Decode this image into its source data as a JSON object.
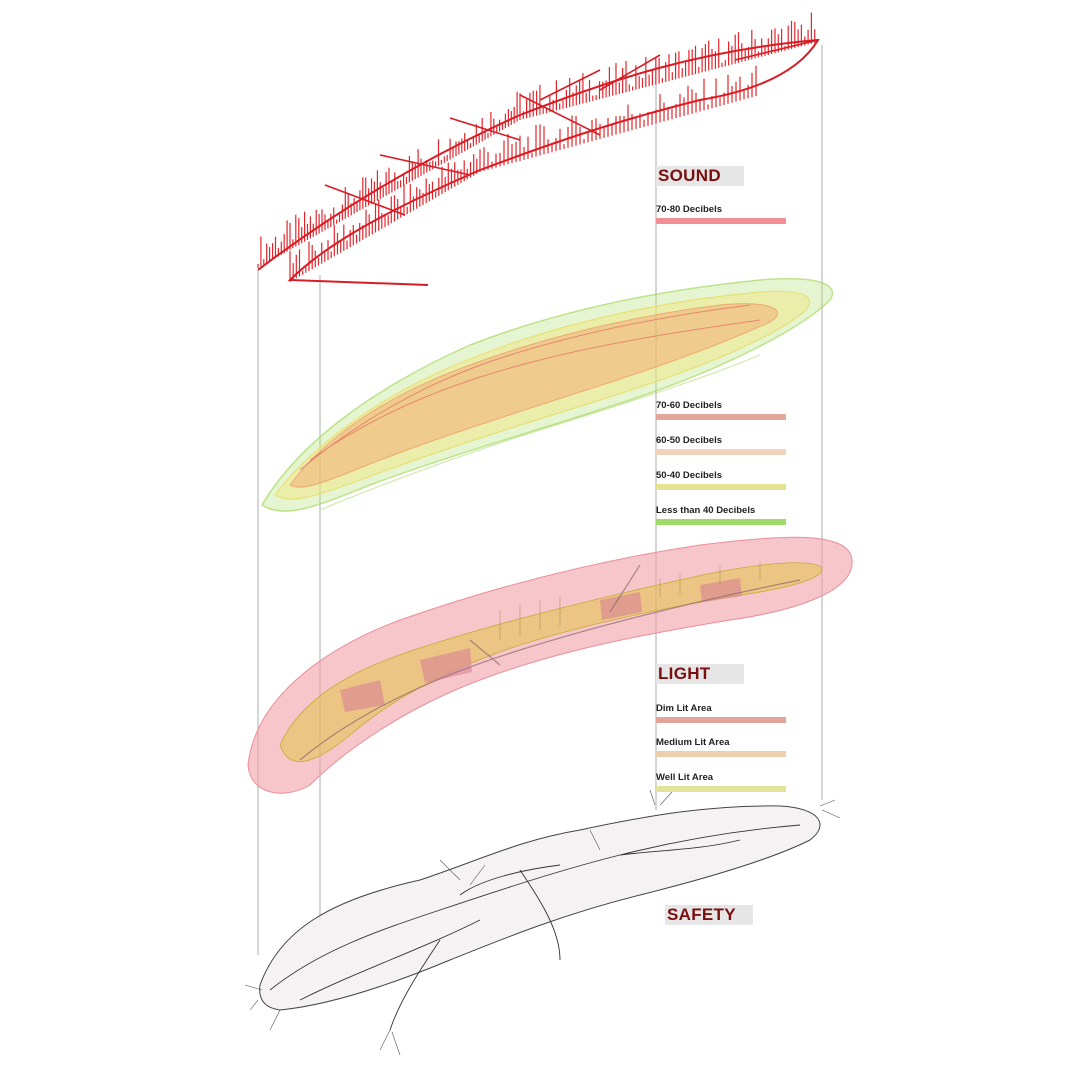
{
  "sound": {
    "heading": "SOUND",
    "legend": [
      {
        "label": "70-80 Decibels",
        "color": "#f28f96"
      }
    ]
  },
  "noise": {
    "legend": [
      {
        "label": "70-60 Decibels",
        "color": "#e3a79a"
      },
      {
        "label": "60-50 Decibels",
        "color": "#f0d3b8"
      },
      {
        "label": "50-40 Decibels",
        "color": "#e5e293"
      },
      {
        "label": "Less than 40 Decibels",
        "color": "#9edb6b"
      }
    ]
  },
  "light": {
    "heading": "LIGHT",
    "legend": [
      {
        "label": "Dim Lit Area",
        "color": "#e4a39a"
      },
      {
        "label": "Medium Lit Area",
        "color": "#edcfab"
      },
      {
        "label": "Well Lit Area",
        "color": "#e2e29a"
      }
    ]
  },
  "safety": {
    "heading": "SAFETY"
  },
  "colors": {
    "heading_text": "#7a0f0f",
    "heading_bg": "#e6e6e6",
    "sound_spikes": "#e3262c",
    "light_pink": "#f0a0a8",
    "light_yellow": "#e4c24a",
    "network_line": "#333333"
  }
}
